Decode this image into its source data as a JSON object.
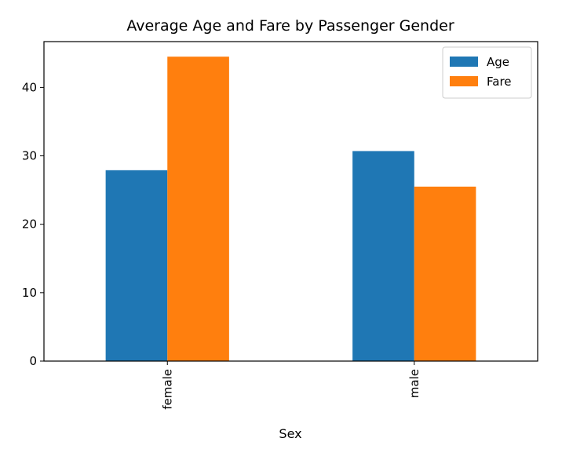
{
  "chart_data": {
    "type": "bar",
    "title": "Average Age and Fare by Passenger Gender",
    "xlabel": "Sex",
    "ylabel": "",
    "categories": [
      "female",
      "male"
    ],
    "series": [
      {
        "name": "Age",
        "values": [
          27.9,
          30.7
        ],
        "color": "#1f77b4"
      },
      {
        "name": "Fare",
        "values": [
          44.5,
          25.5
        ],
        "color": "#ff7f0e"
      }
    ],
    "ylim": [
      0,
      46.7
    ],
    "yticks": [
      0,
      10,
      20,
      30,
      40
    ],
    "grid": false,
    "legend_position": "top-right",
    "x_tick_rotation": "vertical"
  }
}
